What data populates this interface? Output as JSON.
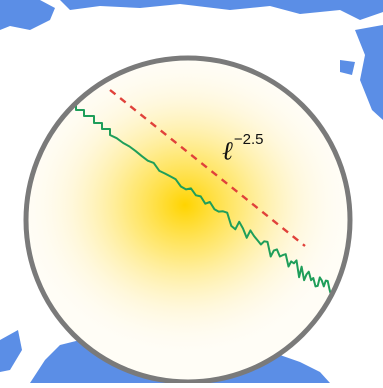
{
  "annotation": {
    "symbol": "ℓ",
    "exponent": "−2.5"
  },
  "chart_data": {
    "type": "line",
    "series": [
      {
        "role": "measured",
        "color": "#1f9e5a"
      },
      {
        "role": "power-law reference",
        "style": "dashed",
        "color": "#e0413a",
        "slope": -2.5
      }
    ]
  },
  "colors": {
    "ring": "#7a7a7a",
    "glow": "#ffd400",
    "background_shapes": "#5b8ee6"
  }
}
